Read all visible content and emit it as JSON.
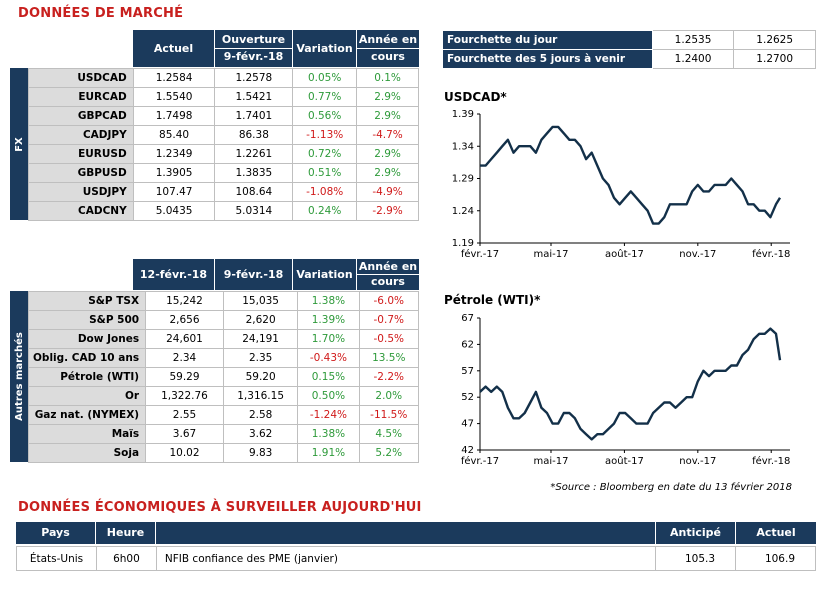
{
  "market_title": "DONNÉES DE MARCHÉ",
  "fx": {
    "side_label": "FX",
    "headers": [
      "Actuel",
      "Ouverture",
      "9-févr.-18",
      "Variation",
      "Année en",
      "cours"
    ],
    "rows": [
      {
        "label": "USDCAD",
        "v1": "1.2584",
        "v2": "1.2578",
        "var": "0.05%",
        "ytd": "0.1%",
        "var_sign": "pos",
        "ytd_sign": "pos"
      },
      {
        "label": "EURCAD",
        "v1": "1.5540",
        "v2": "1.5421",
        "var": "0.77%",
        "ytd": "2.9%",
        "var_sign": "pos",
        "ytd_sign": "pos"
      },
      {
        "label": "GBPCAD",
        "v1": "1.7498",
        "v2": "1.7401",
        "var": "0.56%",
        "ytd": "2.9%",
        "var_sign": "pos",
        "ytd_sign": "pos"
      },
      {
        "label": "CADJPY",
        "v1": "85.40",
        "v2": "86.38",
        "var": "-1.13%",
        "ytd": "-4.7%",
        "var_sign": "neg",
        "ytd_sign": "neg"
      },
      {
        "label": "EURUSD",
        "v1": "1.2349",
        "v2": "1.2261",
        "var": "0.72%",
        "ytd": "2.9%",
        "var_sign": "pos",
        "ytd_sign": "pos"
      },
      {
        "label": "GBPUSD",
        "v1": "1.3905",
        "v2": "1.3835",
        "var": "0.51%",
        "ytd": "2.9%",
        "var_sign": "pos",
        "ytd_sign": "pos"
      },
      {
        "label": "USDJPY",
        "v1": "107.47",
        "v2": "108.64",
        "var": "-1.08%",
        "ytd": "-4.9%",
        "var_sign": "neg",
        "ytd_sign": "neg"
      },
      {
        "label": "CADCNY",
        "v1": "5.0435",
        "v2": "5.0314",
        "var": "0.24%",
        "ytd": "-2.9%",
        "var_sign": "pos",
        "ytd_sign": "neg"
      }
    ]
  },
  "other": {
    "side_label": "Autres marchés",
    "headers": [
      "12-févr.-18",
      "9-févr.-18",
      "Variation",
      "Année en",
      "cours"
    ],
    "rows": [
      {
        "label": "S&P TSX",
        "v1": "15,242",
        "v2": "15,035",
        "var": "1.38%",
        "ytd": "-6.0%",
        "var_sign": "pos",
        "ytd_sign": "neg"
      },
      {
        "label": "S&P 500",
        "v1": "2,656",
        "v2": "2,620",
        "var": "1.39%",
        "ytd": "-0.7%",
        "var_sign": "pos",
        "ytd_sign": "neg"
      },
      {
        "label": "Dow Jones",
        "v1": "24,601",
        "v2": "24,191",
        "var": "1.70%",
        "ytd": "-0.5%",
        "var_sign": "pos",
        "ytd_sign": "neg"
      },
      {
        "label": "Oblig. CAD 10 ans",
        "v1": "2.34",
        "v2": "2.35",
        "var": "-0.43%",
        "ytd": "13.5%",
        "var_sign": "neg",
        "ytd_sign": "pos"
      },
      {
        "label": "Pétrole (WTI)",
        "v1": "59.29",
        "v2": "59.20",
        "var": "0.15%",
        "ytd": "-2.2%",
        "var_sign": "pos",
        "ytd_sign": "neg"
      },
      {
        "label": "Or",
        "v1": "1,322.76",
        "v2": "1,316.15",
        "var": "0.50%",
        "ytd": "2.0%",
        "var_sign": "pos",
        "ytd_sign": "pos"
      },
      {
        "label": "Gaz nat. (NYMEX)",
        "v1": "2.55",
        "v2": "2.58",
        "var": "-1.24%",
        "ytd": "-11.5%",
        "var_sign": "neg",
        "ytd_sign": "neg"
      },
      {
        "label": "Maïs",
        "v1": "3.67",
        "v2": "3.62",
        "var": "1.38%",
        "ytd": "4.5%",
        "var_sign": "pos",
        "ytd_sign": "pos"
      },
      {
        "label": "Soja",
        "v1": "10.02",
        "v2": "9.83",
        "var": "1.91%",
        "ytd": "5.2%",
        "var_sign": "pos",
        "ytd_sign": "pos"
      }
    ]
  },
  "range": {
    "rows": [
      {
        "label": "Fourchette du jour",
        "low": "1.2535",
        "high": "1.2625"
      },
      {
        "label": "Fourchette des 5 jours à venir",
        "low": "1.2400",
        "high": "1.2700"
      }
    ]
  },
  "colors": {
    "navy": "#1b3a5c",
    "positive": "#2e9a3a",
    "negative": "#d01919",
    "title_red": "#c8201e"
  },
  "chart_data": [
    {
      "type": "line",
      "title": "USDCAD*",
      "x_ticks": [
        "févr.-17",
        "mai-17",
        "août-17",
        "nov.-17",
        "févr.-18"
      ],
      "y_ticks": [
        "1.39",
        "1.34",
        "1.29",
        "1.24",
        "1.19"
      ],
      "ylim": [
        1.19,
        1.39
      ],
      "x": [
        "2017-02-01",
        "2017-02-08",
        "2017-02-15",
        "2017-02-22",
        "2017-03-01",
        "2017-03-08",
        "2017-03-15",
        "2017-03-22",
        "2017-03-29",
        "2017-04-05",
        "2017-04-12",
        "2017-04-19",
        "2017-04-26",
        "2017-05-03",
        "2017-05-10",
        "2017-05-17",
        "2017-05-24",
        "2017-05-31",
        "2017-06-07",
        "2017-06-14",
        "2017-06-21",
        "2017-06-28",
        "2017-07-05",
        "2017-07-12",
        "2017-07-19",
        "2017-07-26",
        "2017-08-02",
        "2017-08-09",
        "2017-08-16",
        "2017-08-23",
        "2017-08-30",
        "2017-09-06",
        "2017-09-13",
        "2017-09-20",
        "2017-09-27",
        "2017-10-04",
        "2017-10-11",
        "2017-10-18",
        "2017-10-25",
        "2017-11-01",
        "2017-11-08",
        "2017-11-15",
        "2017-11-22",
        "2017-11-29",
        "2017-12-06",
        "2017-12-13",
        "2017-12-20",
        "2017-12-27",
        "2018-01-03",
        "2018-01-10",
        "2018-01-17",
        "2018-01-24",
        "2018-01-31",
        "2018-02-07",
        "2018-02-12"
      ],
      "values": [
        1.31,
        1.31,
        1.32,
        1.33,
        1.34,
        1.35,
        1.33,
        1.34,
        1.34,
        1.34,
        1.33,
        1.35,
        1.36,
        1.37,
        1.37,
        1.36,
        1.35,
        1.35,
        1.34,
        1.32,
        1.33,
        1.31,
        1.29,
        1.28,
        1.26,
        1.25,
        1.26,
        1.27,
        1.26,
        1.25,
        1.24,
        1.22,
        1.22,
        1.23,
        1.25,
        1.25,
        1.25,
        1.25,
        1.27,
        1.28,
        1.27,
        1.27,
        1.28,
        1.28,
        1.28,
        1.29,
        1.28,
        1.27,
        1.25,
        1.25,
        1.24,
        1.24,
        1.23,
        1.25,
        1.26
      ]
    },
    {
      "type": "line",
      "title": "Pétrole (WTI)*",
      "x_ticks": [
        "févr.-17",
        "mai-17",
        "août-17",
        "nov.-17",
        "févr.-18"
      ],
      "y_ticks": [
        "67",
        "62",
        "57",
        "52",
        "47",
        "42"
      ],
      "ylim": [
        42,
        67
      ],
      "x": [
        "2017-02-01",
        "2017-02-08",
        "2017-02-15",
        "2017-02-22",
        "2017-03-01",
        "2017-03-08",
        "2017-03-15",
        "2017-03-22",
        "2017-03-29",
        "2017-04-05",
        "2017-04-12",
        "2017-04-19",
        "2017-04-26",
        "2017-05-03",
        "2017-05-10",
        "2017-05-17",
        "2017-05-24",
        "2017-05-31",
        "2017-06-07",
        "2017-06-14",
        "2017-06-21",
        "2017-06-28",
        "2017-07-05",
        "2017-07-12",
        "2017-07-19",
        "2017-07-26",
        "2017-08-02",
        "2017-08-09",
        "2017-08-16",
        "2017-08-23",
        "2017-08-30",
        "2017-09-06",
        "2017-09-13",
        "2017-09-20",
        "2017-09-27",
        "2017-10-04",
        "2017-10-11",
        "2017-10-18",
        "2017-10-25",
        "2017-11-01",
        "2017-11-08",
        "2017-11-15",
        "2017-11-22",
        "2017-11-29",
        "2017-12-06",
        "2017-12-13",
        "2017-12-20",
        "2017-12-27",
        "2018-01-03",
        "2018-01-10",
        "2018-01-17",
        "2018-01-24",
        "2018-01-31",
        "2018-02-07",
        "2018-02-12"
      ],
      "values": [
        53,
        54,
        53,
        54,
        53,
        50,
        48,
        48,
        49,
        51,
        53,
        50,
        49,
        47,
        47,
        49,
        49,
        48,
        46,
        45,
        44,
        45,
        45,
        46,
        47,
        49,
        49,
        48,
        47,
        47,
        47,
        49,
        50,
        51,
        51,
        50,
        51,
        52,
        52,
        55,
        57,
        56,
        57,
        57,
        57,
        58,
        58,
        60,
        61,
        63,
        64,
        64,
        65,
        64,
        59
      ]
    }
  ],
  "source_note": "*Source : Bloomberg en date du  13 février 2018",
  "econ": {
    "title": "DONNÉES ÉCONOMIQUES À SURVEILLER AUJOURD'HUI",
    "headers": {
      "pays": "Pays",
      "heure": "Heure",
      "anticipe": "Anticipé",
      "actuel": "Actuel"
    },
    "rows": [
      {
        "pays": "États-Unis",
        "heure": "6h00",
        "event": "NFIB confiance des PME (janvier)",
        "anticipe": "105.3",
        "actuel": "106.9"
      }
    ]
  }
}
